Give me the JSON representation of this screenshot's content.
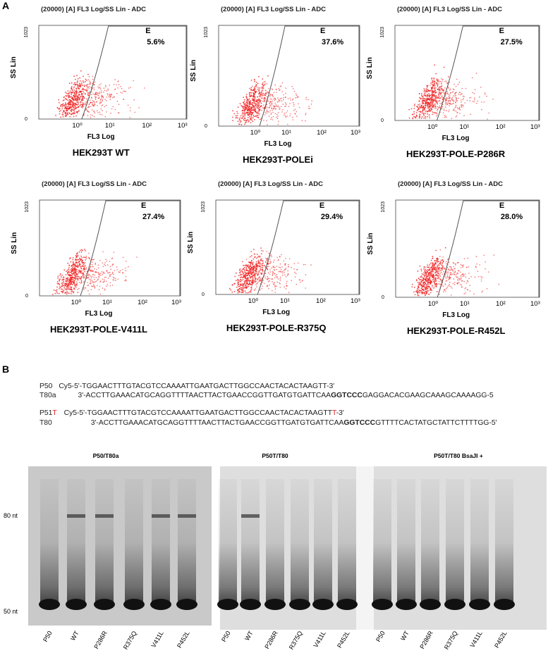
{
  "panel_a": {
    "label": "A",
    "plots": [
      {
        "header": "(20000) [A] FL3 Log/SS Lin - ADC",
        "y_label": "SS Lin",
        "y_ticks": [
          "1023",
          "0"
        ],
        "x_label": "FL3 Log",
        "x_ticks": [
          "10⁰",
          "10¹",
          "10²",
          "10³"
        ],
        "gate": "E",
        "percent": "5.6%",
        "caption": "HEK293T WT"
      },
      {
        "header": "(20000) [A] FL3 Log/SS Lin - ADC",
        "y_label": "SS Lin",
        "y_ticks": [
          "1023",
          "0"
        ],
        "x_label": "FL3 Log",
        "x_ticks": [
          "10⁰",
          "10¹",
          "10²",
          "10³"
        ],
        "gate": "E",
        "percent": "37.6%",
        "caption": "HEK293T-POLEi"
      },
      {
        "header": "(20000) [A] FL3 Log/SS Lin - ADC",
        "y_label": "SS Lin",
        "y_ticks": [
          "1023",
          "0"
        ],
        "x_label": "FL3 Log",
        "x_ticks": [
          "10⁰",
          "10¹",
          "10²",
          "10³"
        ],
        "gate": "E",
        "percent": "27.5%",
        "caption": "HEK293T-POLE-P286R"
      },
      {
        "header": "(20000) [A] FL3 Log/SS Lin - ADC",
        "y_label": "SS Lin",
        "y_ticks": [
          "1023",
          "0"
        ],
        "x_label": "FL3 Log",
        "x_ticks": [
          "10⁰",
          "10¹",
          "10²",
          "10³"
        ],
        "gate": "E",
        "percent": "27.4%",
        "caption": "HEK293T-POLE-V411L"
      },
      {
        "header": "(20000) [A] FL3 Log/SS Lin - ADC",
        "y_label": "SS Lin",
        "y_ticks": [
          "1023",
          "0"
        ],
        "x_label": "FL3 Log",
        "x_ticks": [
          "10⁰",
          "10¹",
          "10²",
          "10³"
        ],
        "gate": "E",
        "percent": "29.4%",
        "caption": "HEK293T-POLE-R375Q"
      },
      {
        "header": "(20000) [A] FL3 Log/SS Lin - ADC",
        "y_label": "SS Lin",
        "y_ticks": [
          "1023",
          "0"
        ],
        "x_label": "FL3 Log",
        "x_ticks": [
          "10⁰",
          "10¹",
          "10²",
          "10³"
        ],
        "gate": "E",
        "percent": "28.0%",
        "caption": "HEK293T-POLE-R452L"
      }
    ]
  },
  "panel_b": {
    "label": "B",
    "sequences": [
      {
        "name": [
          "P50"
        ],
        "seq": [
          "Cy5-5'-TGGAACTTTGTACGTCCAAAATTGAATGACTTGGCCAACTACACTAAGTT-3'"
        ]
      },
      {
        "name": [
          "T80a"
        ],
        "seq": [
          "3'-ACCTTGAAACATGCAGGTTTTAACTTACTGAACCGGTTGATGTGATTCAA",
          "GGTCCC",
          "GAGGACACGAAGCAAAGCAAAAGG-5"
        ]
      },
      {
        "name": [
          "P51",
          "T"
        ],
        "seq": [
          "Cy5-5'-TGGAACTTTGTACGTCCAAAATTGAATGACTTGGCCAACTACACTAAGTT",
          "T",
          "-3'"
        ]
      },
      {
        "name": [
          "T80"
        ],
        "seq": [
          "3'-ACCTTGAAACATGCAGGTTTTAACTTACTGAACCGGTTGATGTGATTCAA",
          "GGTCCC",
          "GTTTTCACTATGCTATTCTTTTGG-5'"
        ]
      }
    ],
    "size_markers": [
      "80 nt",
      "50 nt"
    ],
    "gels": [
      {
        "title": "P50/T80a",
        "lanes": [
          "P50",
          "WT",
          "P286R",
          "R375Q",
          "V411L",
          "P452L"
        ]
      },
      {
        "title": "P50T/T80",
        "lanes": [
          "P50",
          "WT",
          "P286R",
          "R375Q",
          "V411L",
          "P452L"
        ]
      },
      {
        "title": "P50T/T80  BsaJI +",
        "lanes": [
          "P50",
          "WT",
          "P286R",
          "R375Q",
          "V411L",
          "P452L"
        ]
      }
    ]
  }
}
